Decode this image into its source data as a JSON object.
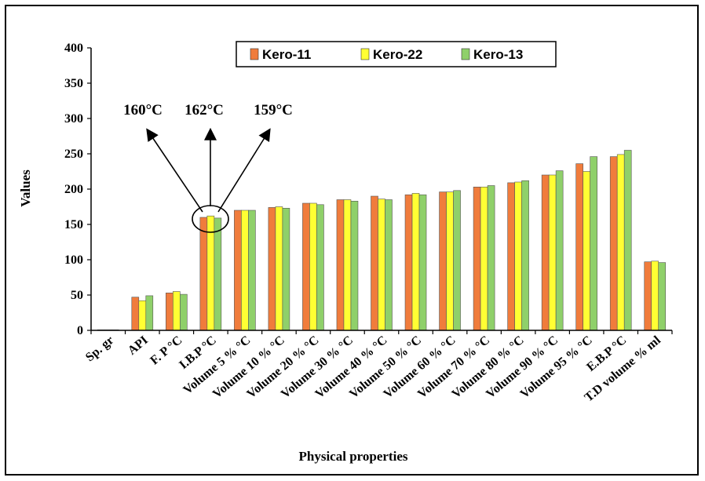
{
  "chart_data": {
    "type": "bar",
    "title": "",
    "xlabel": "Physical properties",
    "ylabel": "Values",
    "ylim": [
      0,
      400
    ],
    "yticks": [
      0,
      50,
      100,
      150,
      200,
      250,
      300,
      350,
      400
    ],
    "grid": false,
    "legend_position": "top-right",
    "categories": [
      "Sp. gr",
      "API",
      "F. P °C",
      "I.B.P °C",
      "Volume 5 % °C",
      "Volume 10 % °C",
      "Volume 20 % °C",
      "Volume 30 % °C",
      "Volume 40 % °C",
      "Volume 50 % °C",
      "Volume 60 % °C",
      "Volume 70 % °C",
      "Volume 80 % °C",
      "Volume 90 % °C",
      "Volume 95 % °C",
      "E.B.P °C",
      "T.D volume % ml"
    ],
    "series": [
      {
        "name": "Kero-11",
        "color": "#f07c3c",
        "values": [
          0.8,
          47,
          53,
          160,
          170,
          174,
          180,
          185,
          190,
          192,
          196,
          203,
          209,
          220,
          236,
          246,
          97
        ]
      },
      {
        "name": "Kero-22",
        "color": "#ffff33",
        "values": [
          0.8,
          42,
          55,
          162,
          170,
          175,
          180,
          185,
          186,
          194,
          196,
          203,
          210,
          220,
          225,
          249,
          98
        ]
      },
      {
        "name": "Kero-13",
        "color": "#8fd06a",
        "values": [
          0.8,
          49,
          51,
          159,
          170,
          173,
          178,
          183,
          185,
          192,
          198,
          205,
          212,
          226,
          246,
          255,
          96
        ]
      }
    ],
    "annotations": [
      "160°C",
      "162°C",
      "159°C"
    ]
  }
}
